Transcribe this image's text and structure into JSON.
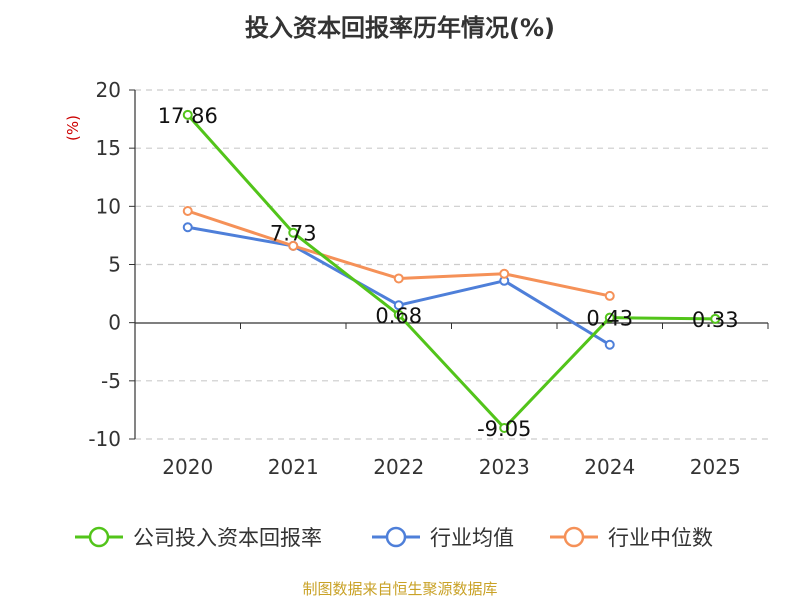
{
  "title": "投入资本回报率历年情况(%)",
  "source": "制图数据来自恒生聚源数据库",
  "chart_data": {
    "type": "line",
    "title": "投入资本回报率历年情况(%)",
    "unit_label": "(%)",
    "categories": [
      "2020",
      "2021",
      "2022",
      "2023",
      "2024",
      "2025"
    ],
    "ylim": [
      -10,
      20
    ],
    "yticks": [
      20,
      15,
      10,
      5,
      0,
      -5,
      -10
    ],
    "grid": true,
    "legend_position": "bottom",
    "series": [
      {
        "name": "公司投入资本回报率",
        "color": "#52c41a",
        "values": [
          17.86,
          7.73,
          0.68,
          -9.05,
          0.43,
          0.33
        ],
        "labels": [
          "17.86",
          "7.73",
          "0.68",
          "-9.05",
          "0.43",
          "0.33"
        ]
      },
      {
        "name": "行业均值",
        "color": "#4e7fd9",
        "values": [
          8.2,
          6.6,
          1.5,
          3.6,
          -1.9,
          null
        ]
      },
      {
        "name": "行业中位数",
        "color": "#f59158",
        "values": [
          9.6,
          6.6,
          3.8,
          4.2,
          2.3,
          null
        ]
      }
    ]
  }
}
